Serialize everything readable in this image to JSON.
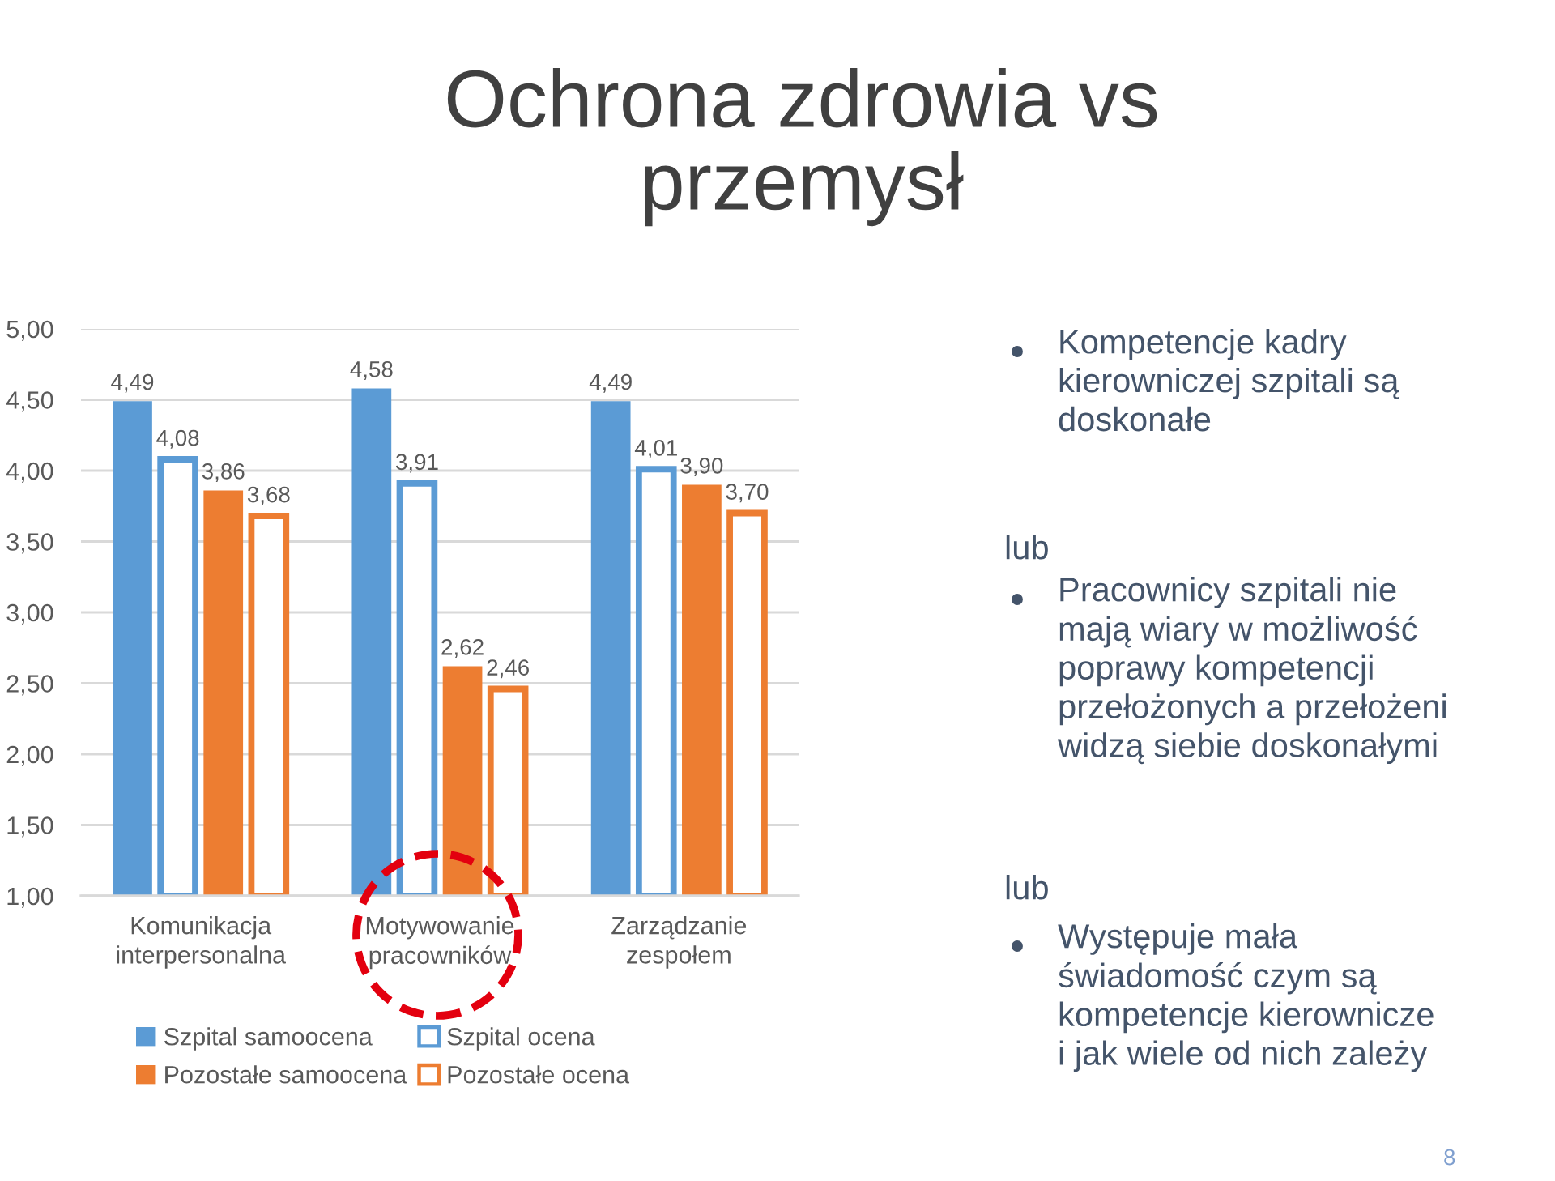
{
  "chart_data": {
    "type": "bar",
    "title": "Ochrona zdrowia vs\nprzemysł",
    "categories": [
      "Komunikacja\ninterpersonalna",
      "Motywowanie\npracowników",
      "Zarządzanie\nzespołem"
    ],
    "series": [
      {
        "name": "Szpital samoocena",
        "color": "#5b9bd5",
        "values": [
          4.49,
          4.58,
          4.49
        ],
        "value_labels": [
          "4,49",
          "4,58",
          "4,49"
        ]
      },
      {
        "name": "Szpital ocena",
        "color": "#5b9bd5",
        "line_style": "solid",
        "values": [
          4.08,
          3.91,
          4.01
        ],
        "value_labels": [
          "4,08",
          "3,91",
          "4,01"
        ]
      },
      {
        "name": "Pozostałe samoocena",
        "color": "#ed7d31",
        "values": [
          3.86,
          2.62,
          3.9
        ],
        "value_labels": [
          "3,86",
          "2,62",
          "3,90"
        ]
      },
      {
        "name": "Pozostałe ocena",
        "color": "#ed7d31",
        "line_style": "solid",
        "values": [
          3.68,
          2.46,
          3.7
        ],
        "value_labels": [
          "3,68",
          "2,46",
          "3,70"
        ]
      }
    ],
    "ylim": [
      1,
      5
    ],
    "yticks": [
      {
        "value": 1,
        "label": "1,00"
      },
      {
        "value": 1.5,
        "label": "1,50"
      },
      {
        "value": 2,
        "label": "2,00"
      },
      {
        "value": 2.5,
        "label": "2,50"
      },
      {
        "value": 3,
        "label": "3,00"
      },
      {
        "value": 3.5,
        "label": "3,50"
      },
      {
        "value": 4,
        "label": "4,00"
      },
      {
        "value": 4.5,
        "label": "4,50"
      },
      {
        "value": 5,
        "label": "5,00"
      }
    ],
    "grid": "y",
    "legend": "bottom",
    "annotations": [
      "Kompetencje kadry\nkierowniczej szpitali są\ndoskonałe",
      "lub",
      "Pracownicy szpitali nie\nmają wiary w możliwość\npoprawy kompetencji\nprzełożonych a przełożeni\nwidzą siebie doskonałymi",
      "lub",
      "Występuje mała\nświadomość czym są\nkompetencje kierownicze\ni jak wiele od nich zależy",
      "8"
    ]
  }
}
